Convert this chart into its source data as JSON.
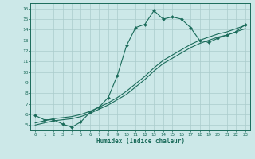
{
  "xlabel": "Humidex (Indice chaleur)",
  "bg_color": "#cce8e8",
  "grid_color": "#aacccc",
  "line_color": "#1a6b5a",
  "xlim": [
    -0.5,
    23.5
  ],
  "ylim": [
    4.5,
    16.5
  ],
  "xticks": [
    0,
    1,
    2,
    3,
    4,
    5,
    6,
    7,
    8,
    9,
    10,
    11,
    12,
    13,
    14,
    15,
    16,
    17,
    18,
    19,
    20,
    21,
    22,
    23
  ],
  "yticks": [
    5,
    6,
    7,
    8,
    9,
    10,
    11,
    12,
    13,
    14,
    15,
    16
  ],
  "line1_x": [
    0,
    1,
    2,
    3,
    4,
    5,
    6,
    7,
    8,
    9,
    10,
    11,
    12,
    13,
    14,
    15,
    16,
    17,
    18,
    19,
    20,
    21,
    22,
    23
  ],
  "line1_y": [
    5.9,
    5.5,
    5.5,
    5.1,
    4.8,
    5.3,
    6.2,
    6.7,
    7.6,
    9.7,
    12.5,
    14.2,
    14.5,
    15.8,
    15.0,
    15.2,
    15.0,
    14.2,
    13.0,
    12.8,
    13.2,
    13.5,
    13.8,
    14.5
  ],
  "line2_x": [
    0,
    1,
    2,
    3,
    4,
    5,
    6,
    7,
    8,
    9,
    10,
    11,
    12,
    13,
    14,
    15,
    16,
    17,
    18,
    19,
    20,
    21,
    22,
    23
  ],
  "line2_y": [
    5.2,
    5.4,
    5.6,
    5.7,
    5.8,
    6.0,
    6.3,
    6.7,
    7.1,
    7.6,
    8.2,
    8.9,
    9.6,
    10.4,
    11.1,
    11.6,
    12.1,
    12.6,
    13.0,
    13.3,
    13.6,
    13.8,
    14.1,
    14.4
  ],
  "line3_x": [
    0,
    1,
    2,
    3,
    4,
    5,
    6,
    7,
    8,
    9,
    10,
    11,
    12,
    13,
    14,
    15,
    16,
    17,
    18,
    19,
    20,
    21,
    22,
    23
  ],
  "line3_y": [
    5.0,
    5.2,
    5.4,
    5.5,
    5.6,
    5.8,
    6.1,
    6.5,
    6.9,
    7.4,
    7.9,
    8.6,
    9.3,
    10.1,
    10.8,
    11.3,
    11.8,
    12.3,
    12.7,
    13.0,
    13.3,
    13.5,
    13.8,
    14.1
  ]
}
